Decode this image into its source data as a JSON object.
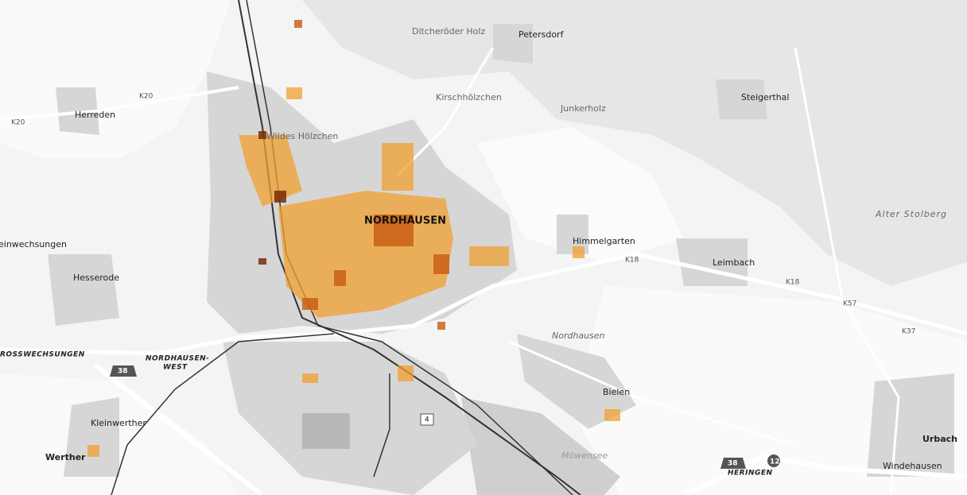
{
  "labels": [
    "Ditcheröder Holz",
    "Petersdorf",
    "Herreden",
    "K20",
    "K20",
    "Kirschhölzchen",
    "Junkerholz",
    "Steigerthal",
    "Wildes Hölzchen",
    "NORDHAUSEN",
    "Himmelgarten",
    "K18",
    "K18",
    "Leimbach",
    "Alter Stolberg",
    "einwechsungen",
    "Hesserode",
    "ROSSWECHSUNGEN",
    "NORDHAUSEN-",
    "WEST",
    "38",
    "Nordhausen",
    "Bielen",
    "Kleinwerther",
    "Werther",
    "4",
    "Urbach",
    "Windehausen",
    "38",
    "12",
    "HERINGEN",
    "Möwensee",
    "K37",
    "K57"
  ]
}
